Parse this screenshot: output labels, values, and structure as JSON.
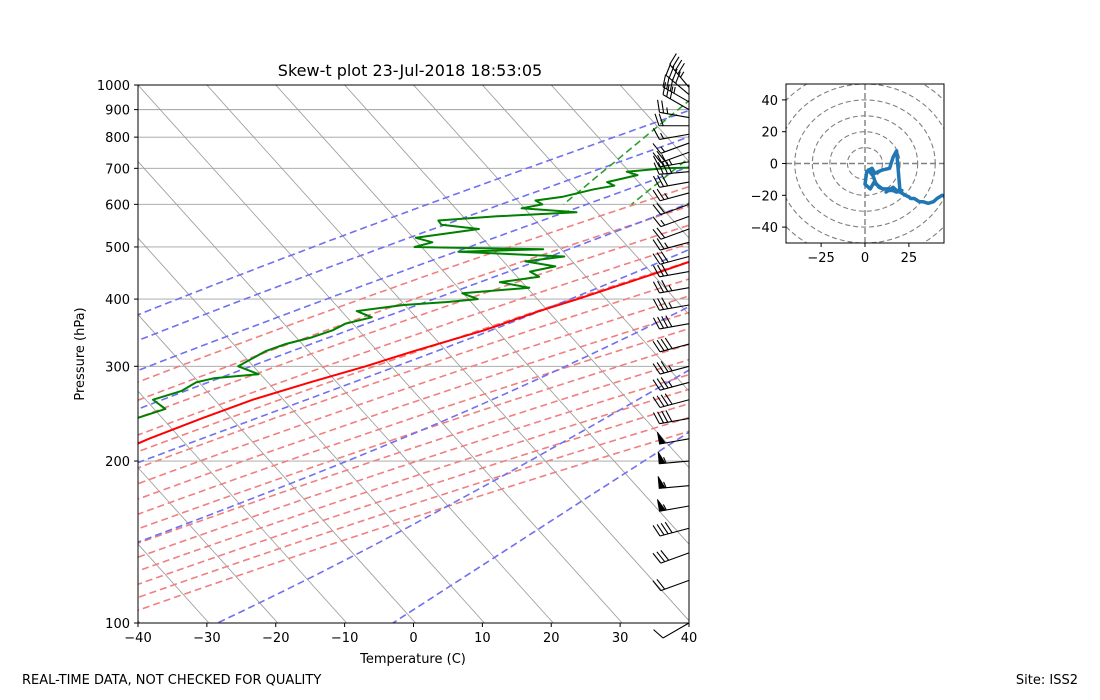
{
  "skewt": {
    "title": "Skew-t plot 23-Jul-2018 18:53:05",
    "xlabel": "Temperature (C)",
    "ylabel": "Pressure (hPa)"
  },
  "footer": {
    "left": "REAL-TIME DATA, NOT CHECKED FOR QUALITY",
    "right": "Site: ISS2"
  },
  "colors": {
    "temperature": "#ff0000",
    "dewpoint": "#008000",
    "dry_adiabat": "#f08080",
    "moist_adiabat": "#7070f0",
    "mixing_ratio": "#2ca02c",
    "isotherm": "#a0a0a0",
    "hodograph": "#1f77b4"
  },
  "chart_data": [
    {
      "type": "line",
      "name": "skew-t",
      "title": "Skew-t plot 23-Jul-2018 18:53:05",
      "xlabel": "Temperature (C)",
      "ylabel": "Pressure (hPa)",
      "xlim": [
        -40,
        40
      ],
      "ylim": [
        1000,
        100
      ],
      "xticks": [
        -40,
        -30,
        -20,
        -10,
        0,
        10,
        20,
        30,
        40
      ],
      "yticks": [
        1000,
        900,
        800,
        700,
        600,
        500,
        400,
        300,
        200,
        100
      ],
      "y_scale": "log",
      "series": [
        {
          "name": "Temperature",
          "pressure": [
            1000,
            950,
            900,
            880,
            850,
            800,
            770,
            740,
            720,
            700,
            680,
            650,
            620,
            600,
            570,
            550,
            520,
            500,
            470,
            450,
            420,
            400,
            380,
            350,
            320,
            300,
            280,
            260,
            240,
            220,
            200,
            180,
            170,
            160,
            150,
            140,
            130,
            120,
            110,
            100
          ],
          "values": [
            28.2,
            24.5,
            22.3,
            21.8,
            22.6,
            22.0,
            20.6,
            18.4,
            17.5,
            16.2,
            14.8,
            12.9,
            10.6,
            9.2,
            6.3,
            3.8,
            0.2,
            -2.5,
            -7.0,
            -10.0,
            -15.0,
            -18.5,
            -22.5,
            -28.0,
            -35.5,
            -40.5,
            -46.5,
            -52.5,
            -57.5,
            -62.5,
            -67.0,
            -70.5,
            -72.0,
            -74.5,
            -76.5,
            -77.5,
            -77.0,
            -72.5,
            -68.0,
            -65.5
          ]
        },
        {
          "name": "Dewpoint",
          "pressure": [
            1000,
            950,
            900,
            850,
            800,
            770,
            750,
            740,
            725,
            710,
            700,
            690,
            680,
            660,
            650,
            640,
            620,
            610,
            600,
            590,
            580,
            570,
            560,
            550,
            540,
            520,
            510,
            500,
            495,
            490,
            480,
            470,
            460,
            450,
            440,
            430,
            420,
            410,
            400,
            395,
            390,
            380,
            370,
            360,
            350,
            340,
            330,
            320,
            300,
            290,
            285,
            280,
            270,
            260,
            250,
            240,
            230,
            220,
            210,
            200,
            190,
            180,
            175,
            170,
            160,
            150,
            140,
            130,
            125,
            120,
            110,
            100
          ],
          "values": [
            19.8,
            18.2,
            17.5,
            16.6,
            14.0,
            13.8,
            11.5,
            4.5,
            -4.0,
            -6.0,
            -23.0,
            -28.0,
            -26.0,
            -29.5,
            -28.0,
            -30.5,
            -34.0,
            -37.5,
            -36.0,
            -38.5,
            -30.0,
            -41.0,
            -49.0,
            -48.0,
            -42.0,
            -50.0,
            -47.0,
            -49.0,
            -30.0,
            -42.0,
            -26.0,
            -31.0,
            -26.0,
            -29.0,
            -27.0,
            -32.0,
            -27.0,
            -36.0,
            -33.0,
            -37.0,
            -43.0,
            -49.0,
            -46.0,
            -49.0,
            -50.0,
            -52.0,
            -55.0,
            -57.0,
            -59.0,
            -55.0,
            -61.0,
            -63.0,
            -64.0,
            -67.0,
            -64.0,
            -67.0,
            -70.0,
            -68.0,
            -73.0,
            -74.0,
            -72.0,
            -73.0,
            -76.0,
            -75.5,
            -74.0,
            -72.5,
            -71.5,
            -70.0,
            -68.0,
            -63.5,
            -59.5,
            -62.0
          ]
        }
      ],
      "background_lines": {
        "isotherms_every_C": 10,
        "dry_adiabats_theta_K": [
          290,
          300,
          310,
          320,
          330,
          340,
          350,
          360,
          370,
          380,
          390,
          400,
          410,
          420,
          430,
          440
        ],
        "moist_adiabats_start_C": [
          -20,
          -10,
          0,
          10,
          20,
          30,
          40,
          50
        ],
        "mixing_ratio_lines_g_kg": [
          0.4,
          1,
          2,
          3,
          5,
          8,
          12,
          16,
          20,
          24,
          28
        ],
        "mixing_ratio_top_hPa": 600
      },
      "wind_barbs": {
        "pressure": [
          990,
          960,
          930,
          900,
          870,
          840,
          810,
          780,
          750,
          720,
          690,
          660,
          630,
          600,
          570,
          540,
          510,
          480,
          450,
          420,
          390,
          360,
          330,
          300,
          280,
          260,
          240,
          220,
          200,
          180,
          165,
          150,
          135,
          120,
          100
        ],
        "speed_kt": [
          45,
          40,
          35,
          30,
          25,
          20,
          15,
          15,
          20,
          35,
          40,
          30,
          25,
          20,
          15,
          20,
          25,
          30,
          30,
          35,
          35,
          40,
          40,
          35,
          35,
          40,
          40,
          50,
          55,
          55,
          55,
          40,
          30,
          20,
          10
        ],
        "direction_deg": [
          320,
          310,
          300,
          300,
          280,
          270,
          260,
          250,
          250,
          260,
          265,
          260,
          255,
          250,
          250,
          250,
          255,
          255,
          260,
          260,
          260,
          260,
          255,
          255,
          255,
          255,
          260,
          260,
          265,
          265,
          260,
          255,
          250,
          250,
          240
        ]
      }
    },
    {
      "type": "line",
      "name": "hodograph",
      "xlim": [
        -45,
        45
      ],
      "ylim": [
        -50,
        50
      ],
      "xticks": [
        -25,
        0,
        25
      ],
      "yticks": [
        -40,
        -20,
        0,
        20,
        40
      ],
      "range_rings": [
        10,
        20,
        30,
        40,
        50,
        60
      ],
      "series": [
        {
          "name": "Wind",
          "u": [
            3,
            5,
            4,
            1,
            0,
            3,
            5,
            10,
            14,
            12,
            16,
            18,
            21,
            18,
            16,
            14,
            12,
            10,
            8,
            6,
            4,
            2,
            2,
            4,
            6,
            8,
            10,
            14,
            16,
            18,
            20,
            23,
            25,
            26,
            28,
            31,
            33,
            36,
            39,
            41,
            44,
            46
          ],
          "v": [
            -6,
            -5,
            -3,
            -5,
            -13,
            -16,
            -12,
            -16,
            -16,
            -18,
            -15,
            -17,
            -17,
            -18,
            -17,
            -17,
            -16,
            -16,
            -15,
            -12,
            -6,
            -5,
            -4,
            -7,
            -6,
            -5,
            -4,
            -3,
            4,
            8,
            -18,
            -20,
            -21,
            -22,
            -22,
            -24,
            -24,
            -25,
            -24,
            -22,
            -20,
            -21
          ]
        }
      ]
    }
  ]
}
